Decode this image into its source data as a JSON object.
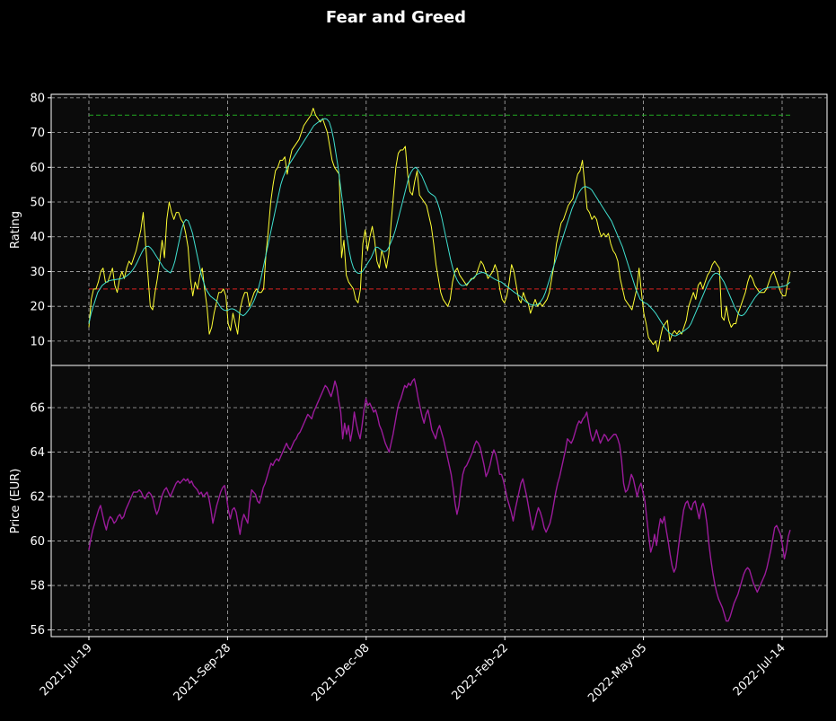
{
  "chart_data": [
    {
      "type": "line",
      "title": "Fear and Greed",
      "ylabel": "Rating",
      "ylim": [
        3,
        81
      ],
      "yticks": [
        10,
        20,
        30,
        40,
        50,
        60,
        70,
        80
      ],
      "x_ticks": [
        "2021-Jul-19",
        "2021-Sep-28",
        "2021-Dec-08",
        "2022-Feb-22",
        "2022-May-05",
        "2022-Jul-14"
      ],
      "grid": true,
      "reference_lines": [
        {
          "value": 75,
          "color": "#22aa22"
        },
        {
          "value": 25,
          "color": "#dd2222"
        }
      ],
      "series": [
        {
          "color": "#ffff33",
          "values": [
            14,
            22,
            25,
            25,
            27,
            30,
            31,
            27,
            27,
            29,
            31,
            26,
            24,
            28,
            30,
            28,
            31,
            33,
            32,
            34,
            36,
            39,
            42,
            47,
            38,
            29,
            20,
            19,
            24,
            28,
            33,
            39,
            34,
            45,
            50,
            47,
            45,
            47,
            47,
            45,
            44,
            41,
            37,
            28,
            23,
            27,
            25,
            29,
            31,
            25,
            20,
            12,
            14,
            18,
            21,
            24,
            24,
            25,
            23,
            15,
            13,
            18,
            15,
            12,
            19,
            22,
            24,
            24,
            20,
            22,
            24,
            25,
            24,
            24,
            25,
            35,
            42,
            50,
            55,
            59,
            60,
            62,
            62,
            63,
            58,
            62,
            65,
            66,
            67,
            68,
            70,
            72,
            73,
            74,
            75,
            77,
            75,
            74,
            73,
            74,
            72,
            70,
            66,
            62,
            60,
            59,
            58,
            34,
            39,
            29,
            27,
            26,
            25,
            22,
            21,
            25,
            38,
            42,
            36,
            40,
            43,
            39,
            33,
            31,
            36,
            34,
            31,
            35,
            44,
            52,
            60,
            64,
            65,
            65,
            66,
            58,
            53,
            52,
            56,
            59,
            52,
            51,
            50,
            49,
            46,
            43,
            38,
            32,
            28,
            24,
            22,
            21,
            20,
            22,
            27,
            30,
            31,
            29,
            28,
            27,
            26,
            27,
            28,
            28,
            29,
            31,
            33,
            32,
            30,
            28,
            29,
            30,
            32,
            30,
            25,
            22,
            21,
            23,
            27,
            32,
            30,
            26,
            22,
            21,
            24,
            22,
            21,
            18,
            20,
            22,
            20,
            21,
            20,
            21,
            22,
            24,
            28,
            32,
            38,
            41,
            44,
            45,
            47,
            49,
            50,
            51,
            55,
            58,
            59,
            62,
            55,
            48,
            47,
            45,
            46,
            45,
            42,
            40,
            41,
            40,
            41,
            38,
            36,
            35,
            33,
            28,
            25,
            22,
            21,
            20,
            19,
            22,
            25,
            31,
            24,
            18,
            15,
            11,
            10,
            9,
            10,
            7,
            11,
            14,
            15,
            16,
            10,
            12,
            13,
            12,
            13,
            12,
            14,
            16,
            20,
            22,
            24,
            22,
            26,
            27,
            25,
            27,
            29,
            30,
            32,
            33,
            32,
            31,
            17,
            16,
            20,
            16,
            14,
            15,
            15,
            18,
            20,
            22,
            24,
            27,
            29,
            28,
            26,
            25,
            24,
            24,
            24,
            25,
            27,
            29,
            30,
            28,
            26,
            24,
            23,
            23,
            27,
            30
          ]
        },
        {
          "color": "#40e0d0",
          "values": [
            15,
            18,
            20,
            22,
            24,
            25,
            26,
            26.5,
            27,
            27.3,
            27.5,
            27.6,
            27.7,
            27.8,
            27.9,
            28,
            28.3,
            28.7,
            29.2,
            29.8,
            30.6,
            31.6,
            32.8,
            34.2,
            35.5,
            36.6,
            37.2,
            37.3,
            36.8,
            36,
            35,
            34,
            33,
            32,
            31,
            30.5,
            30,
            29.6,
            31,
            33,
            36,
            39,
            42,
            44,
            45,
            44.6,
            43,
            41,
            38,
            35,
            32,
            29,
            27,
            25,
            24,
            23,
            22.5,
            22,
            21.5,
            20.5,
            19.5,
            19,
            18.8,
            18.9,
            19.2,
            19.3,
            19.1,
            18.7,
            18.2,
            17.6,
            17.3,
            17.8,
            18.6,
            19.5,
            20.5,
            21.8,
            23.5,
            25.5,
            28,
            31,
            34,
            37,
            40,
            43,
            46,
            49,
            52,
            55,
            57,
            58.5,
            60,
            61,
            62,
            63,
            64,
            65,
            66,
            67,
            68,
            69,
            70,
            71,
            72,
            72.5,
            73,
            73.5,
            73.8,
            74,
            73.8,
            73,
            71,
            68,
            64,
            60,
            55,
            50,
            45,
            40,
            36,
            33,
            31,
            30,
            29.5,
            29.5,
            30,
            31,
            32,
            33,
            34,
            35.5,
            37,
            37,
            36.5,
            36,
            35.7,
            36,
            37,
            38.5,
            40,
            42,
            44.5,
            47,
            49.5,
            52,
            54.5,
            57,
            58.5,
            59.5,
            60,
            59.5,
            58.5,
            57.5,
            56,
            54.5,
            53,
            52.4,
            52,
            51.5,
            50,
            48,
            45.5,
            42.5,
            39.5,
            36.5,
            33.5,
            31,
            29,
            27.5,
            26.5,
            26,
            26,
            26.2,
            26.8,
            27.4,
            28,
            28.6,
            29.2,
            29.5,
            29.7,
            29.7,
            29.4,
            29,
            28.6,
            28.2,
            27.8,
            27.5,
            27.2,
            27,
            26.5,
            26,
            25.5,
            25,
            24.5,
            24,
            23.6,
            23.1,
            22.6,
            22,
            21.4,
            21,
            20.6,
            20.4,
            20.3,
            20.4,
            20.8,
            21.5,
            22.5,
            24,
            26,
            28,
            30,
            32,
            34,
            36,
            38,
            40,
            42,
            44,
            46,
            48,
            49.5,
            51,
            52.5,
            53.5,
            54.2,
            54.5,
            54.3,
            54,
            53.5,
            52.5,
            51.5,
            50.5,
            49.5,
            48.5,
            47.5,
            46.5,
            45.5,
            44.5,
            43,
            41.5,
            40,
            38.5,
            37,
            35,
            33,
            31,
            29,
            27,
            25,
            23.5,
            22,
            21.5,
            21,
            20.8,
            20.2,
            19.5,
            18.8,
            18,
            17,
            16,
            15,
            14,
            13.2,
            12.5,
            12,
            11.6,
            11.5,
            11.8,
            12.2,
            12.6,
            13,
            13.5,
            14,
            15,
            16.5,
            18,
            19.5,
            21,
            22.5,
            24,
            25.5,
            27,
            28,
            29,
            29.5,
            29.5,
            29,
            28,
            27,
            25.5,
            24,
            22.5,
            21,
            19.5,
            18.4,
            17.5,
            17.3,
            17.6,
            18.4,
            19.5,
            20.5,
            21.5,
            22.5,
            23.3,
            24,
            24.6,
            25,
            25.2,
            25.4,
            25.5,
            25.5,
            25.5,
            25.5,
            25.5,
            25.6,
            25.8,
            26,
            26.4,
            27
          ]
        }
      ]
    },
    {
      "type": "line",
      "ylabel": "Price (EUR)",
      "ylim": [
        55.7,
        67.9
      ],
      "yticks": [
        56,
        58,
        60,
        62,
        64,
        66
      ],
      "x_ticks": [
        "2021-Jul-19",
        "2021-Sep-28",
        "2021-Dec-08",
        "2022-Feb-22",
        "2022-May-05",
        "2022-Jul-14"
      ],
      "grid": true,
      "series": [
        {
          "color": "#9b1b9b",
          "values": [
            59.6,
            60.1,
            60.5,
            60.8,
            61.1,
            61.4,
            61.6,
            61.2,
            60.8,
            60.5,
            60.9,
            61.1,
            61.0,
            60.8,
            60.9,
            61.1,
            61.2,
            61.0,
            61.1,
            61.4,
            61.6,
            61.8,
            62.0,
            62.2,
            62.2,
            62.2,
            62.3,
            62.2,
            62.0,
            61.9,
            62.1,
            62.2,
            62.1,
            61.9,
            61.5,
            61.2,
            61.4,
            61.8,
            62.1,
            62.3,
            62.4,
            62.2,
            62.0,
            62.2,
            62.4,
            62.6,
            62.7,
            62.6,
            62.7,
            62.8,
            62.7,
            62.8,
            62.6,
            62.7,
            62.5,
            62.4,
            62.3,
            62.1,
            62.2,
            62.0,
            62.1,
            62.2,
            61.9,
            61.4,
            60.8,
            61.2,
            61.6,
            61.9,
            62.2,
            62.4,
            62.5,
            62.0,
            61.4,
            61.0,
            61.4,
            61.5,
            61.3,
            60.8,
            60.3,
            60.9,
            61.2,
            61.0,
            60.8,
            61.7,
            62.3,
            62.2,
            62.1,
            61.8,
            61.7,
            62.0,
            62.4,
            62.6,
            62.9,
            63.2,
            63.5,
            63.4,
            63.6,
            63.7,
            63.6,
            63.8,
            64.0,
            64.2,
            64.4,
            64.2,
            64.1,
            64.3,
            64.5,
            64.6,
            64.8,
            64.9,
            65.1,
            65.3,
            65.5,
            65.7,
            65.6,
            65.5,
            65.8,
            66.0,
            66.2,
            66.4,
            66.6,
            66.8,
            67.0,
            66.9,
            66.7,
            66.5,
            66.8,
            67.2,
            66.9,
            66.3,
            65.8,
            64.6,
            65.3,
            64.8,
            65.2,
            64.5,
            65.0,
            65.8,
            65.3,
            64.9,
            64.6,
            65.2,
            65.9,
            66.4,
            66.1,
            66.2,
            66.0,
            65.8,
            65.9,
            65.6,
            65.2,
            65.0,
            64.7,
            64.4,
            64.2,
            64.0,
            64.4,
            64.8,
            65.3,
            65.8,
            66.2,
            66.4,
            66.7,
            67.0,
            66.9,
            67.1,
            67.0,
            67.2,
            67.3,
            66.9,
            66.4,
            66.0,
            65.6,
            65.3,
            65.7,
            65.9,
            65.5,
            65.0,
            64.8,
            64.6,
            65.0,
            65.2,
            64.9,
            64.6,
            64.2,
            63.8,
            63.4,
            63.0,
            62.4,
            61.7,
            61.2,
            61.6,
            62.4,
            63.0,
            63.3,
            63.4,
            63.6,
            63.8,
            64.0,
            64.3,
            64.5,
            64.4,
            64.2,
            63.8,
            63.4,
            62.9,
            63.1,
            63.4,
            63.8,
            64.1,
            63.9,
            63.5,
            63.0,
            63.0,
            62.7,
            62.3,
            61.9,
            61.6,
            61.3,
            60.9,
            61.4,
            61.8,
            62.2,
            62.6,
            62.8,
            62.4,
            62.0,
            61.5,
            61.0,
            60.5,
            60.8,
            61.2,
            61.5,
            61.3,
            61.0,
            60.6,
            60.4,
            60.6,
            60.8,
            61.2,
            61.7,
            62.2,
            62.6,
            62.9,
            63.3,
            63.7,
            64.1,
            64.6,
            64.5,
            64.4,
            64.6,
            64.9,
            65.2,
            65.4,
            65.3,
            65.5,
            65.6,
            65.8,
            65.3,
            64.8,
            64.5,
            64.7,
            65.0,
            64.7,
            64.4,
            64.6,
            64.8,
            64.7,
            64.5,
            64.6,
            64.7,
            64.8,
            64.8,
            64.6,
            64.3,
            63.6,
            62.6,
            62.2,
            62.3,
            62.6,
            63.0,
            62.8,
            62.4,
            62.0,
            62.4,
            62.6,
            62.2,
            61.8,
            61.0,
            60.2,
            59.5,
            59.8,
            60.3,
            59.8,
            60.5,
            61.0,
            60.8,
            61.1,
            60.5,
            60.0,
            59.4,
            58.9,
            58.6,
            58.8,
            59.5,
            60.2,
            60.8,
            61.4,
            61.7,
            61.8,
            61.5,
            61.4,
            61.7,
            61.8,
            61.4,
            61.0,
            61.5,
            61.7,
            61.4,
            60.8,
            59.9,
            59.2,
            58.6,
            58.1,
            57.7,
            57.4,
            57.2,
            57.0,
            56.7,
            56.4,
            56.4,
            56.6,
            56.9,
            57.2,
            57.4,
            57.6,
            57.9,
            58.2,
            58.5,
            58.7,
            58.8,
            58.7,
            58.4,
            58.1,
            57.9,
            57.7,
            57.9,
            58.1,
            58.3,
            58.5,
            58.8,
            59.2,
            59.6,
            60.1,
            60.6,
            60.7,
            60.5,
            60.3,
            59.8,
            59.2,
            59.6,
            60.2,
            60.5
          ]
        }
      ]
    }
  ]
}
